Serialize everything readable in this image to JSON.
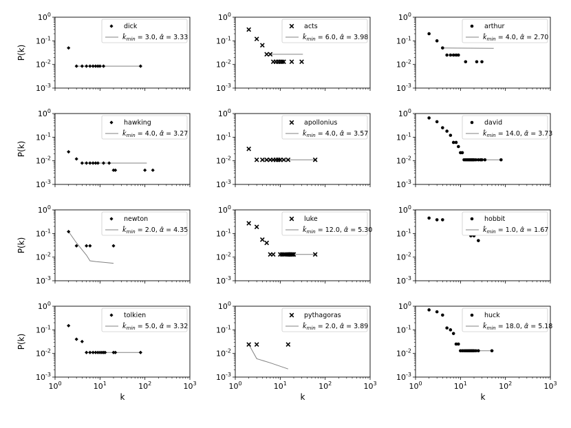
{
  "axis": {
    "xlabel": "k",
    "ylabel": "P(k)",
    "x_ticks": [
      "10^0",
      "10^1",
      "10^2",
      "10^3"
    ],
    "y_ticks": [
      "10^0",
      "10^-1",
      "10^-2",
      "10^-3"
    ],
    "xlim": [
      1,
      1000
    ],
    "ylim": [
      0.001,
      1
    ],
    "scale": "log-log"
  },
  "chart_data": [
    {
      "type": "scatter",
      "name": "dick",
      "marker": "plus",
      "kmin": "3.0",
      "alpha": "3.33",
      "x": [
        2,
        3,
        4,
        5,
        6,
        7,
        8,
        9,
        10,
        12,
        80
      ],
      "y": [
        0.05,
        0.0085,
        0.0085,
        0.0085,
        0.0085,
        0.0085,
        0.0085,
        0.0085,
        0.0085,
        0.0085,
        0.0085
      ],
      "fit": [
        [
          3,
          0.0085
        ],
        [
          85,
          0.0085
        ]
      ]
    },
    {
      "type": "scatter",
      "name": "acts",
      "marker": "x",
      "kmin": "6.0",
      "alpha": "3.98",
      "x": [
        2,
        3,
        4,
        5,
        6,
        7,
        8,
        9,
        10,
        11,
        12,
        18,
        30
      ],
      "y": [
        0.3,
        0.12,
        0.065,
        0.027,
        0.027,
        0.013,
        0.013,
        0.013,
        0.013,
        0.013,
        0.013,
        0.013,
        0.013
      ],
      "fit": [
        [
          6,
          0.027
        ],
        [
          32,
          0.027
        ]
      ]
    },
    {
      "type": "scatter",
      "name": "arthur",
      "marker": "dot",
      "kmin": "4.0",
      "alpha": "2.70",
      "x": [
        2,
        3,
        4,
        5,
        6,
        7,
        8,
        9,
        13,
        23,
        30
      ],
      "y": [
        0.2,
        0.1,
        0.05,
        0.025,
        0.025,
        0.025,
        0.025,
        0.025,
        0.013,
        0.013,
        0.013
      ],
      "fit": [
        [
          4,
          0.05
        ],
        [
          55,
          0.048
        ]
      ]
    },
    {
      "type": "scatter",
      "name": "hawking",
      "marker": "plus",
      "kmin": "4.0",
      "alpha": "3.27",
      "x": [
        2,
        3,
        4,
        5,
        6,
        7,
        8,
        9,
        12,
        16,
        20,
        22,
        100,
        150
      ],
      "y": [
        0.024,
        0.012,
        0.008,
        0.008,
        0.008,
        0.008,
        0.008,
        0.008,
        0.008,
        0.008,
        0.004,
        0.004,
        0.004,
        0.004
      ],
      "fit": [
        [
          4,
          0.008
        ],
        [
          110,
          0.008
        ]
      ]
    },
    {
      "type": "scatter",
      "name": "apollonius",
      "marker": "x",
      "kmin": "4.0",
      "alpha": "3.57",
      "x": [
        2,
        3,
        4,
        5,
        6,
        7,
        8,
        9,
        10,
        12,
        15,
        60
      ],
      "y": [
        0.032,
        0.011,
        0.011,
        0.011,
        0.011,
        0.011,
        0.011,
        0.011,
        0.011,
        0.011,
        0.011,
        0.011
      ],
      "fit": [
        [
          4,
          0.011
        ],
        [
          65,
          0.011
        ]
      ]
    },
    {
      "type": "scatter",
      "name": "david",
      "marker": "dot",
      "kmin": "14.0",
      "alpha": "3.73",
      "x": [
        2,
        3,
        4,
        5,
        6,
        7,
        8,
        9,
        10,
        11,
        12,
        13,
        14,
        15,
        16,
        17,
        18,
        19,
        20,
        22,
        25,
        28,
        30,
        35,
        80
      ],
      "y": [
        0.65,
        0.45,
        0.25,
        0.18,
        0.12,
        0.06,
        0.06,
        0.04,
        0.022,
        0.022,
        0.011,
        0.011,
        0.011,
        0.011,
        0.011,
        0.011,
        0.011,
        0.011,
        0.011,
        0.011,
        0.011,
        0.011,
        0.011,
        0.011,
        0.011
      ],
      "fit": [
        [
          14,
          0.011
        ],
        [
          85,
          0.011
        ]
      ]
    },
    {
      "type": "scatter",
      "name": "newton",
      "marker": "plus",
      "kmin": "2.0",
      "alpha": "4.35",
      "x": [
        2,
        3,
        5,
        6,
        20
      ],
      "y": [
        0.12,
        0.03,
        0.03,
        0.03,
        0.03
      ],
      "fit": [
        [
          2,
          0.12
        ],
        [
          3,
          0.04
        ],
        [
          5,
          0.012
        ],
        [
          6,
          0.007
        ],
        [
          8,
          0.0065
        ],
        [
          20,
          0.0055
        ]
      ]
    },
    {
      "type": "scatter",
      "name": "luke",
      "marker": "x",
      "kmin": "12.0",
      "alpha": "5.30",
      "x": [
        2,
        3,
        4,
        5,
        6,
        7,
        10,
        11,
        12,
        13,
        14,
        15,
        16,
        17,
        18,
        19,
        20,
        60
      ],
      "y": [
        0.27,
        0.19,
        0.055,
        0.04,
        0.013,
        0.013,
        0.013,
        0.013,
        0.013,
        0.013,
        0.013,
        0.013,
        0.013,
        0.013,
        0.013,
        0.013,
        0.013,
        0.013
      ],
      "fit": [
        [
          12,
          0.013
        ],
        [
          65,
          0.013
        ]
      ]
    },
    {
      "type": "scatter",
      "name": "hobbit",
      "marker": "dot",
      "kmin": "1.0",
      "alpha": "1.67",
      "x": [
        2,
        3,
        4,
        17,
        20,
        25
      ],
      "y": [
        0.45,
        0.38,
        0.38,
        0.08,
        0.08,
        0.05
      ],
      "fit": []
    },
    {
      "type": "scatter",
      "name": "tolkien",
      "marker": "plus",
      "kmin": "5.0",
      "alpha": "3.32",
      "x": [
        2,
        3,
        4,
        5,
        6,
        7,
        8,
        9,
        10,
        11,
        12,
        13,
        20,
        22,
        80
      ],
      "y": [
        0.15,
        0.04,
        0.032,
        0.011,
        0.011,
        0.011,
        0.011,
        0.011,
        0.011,
        0.011,
        0.011,
        0.011,
        0.011,
        0.011,
        0.011
      ],
      "fit": [
        [
          5,
          0.011
        ],
        [
          85,
          0.011
        ]
      ]
    },
    {
      "type": "scatter",
      "name": "pythagoras",
      "marker": "x",
      "kmin": "2.0",
      "alpha": "3.89",
      "x": [
        2,
        3,
        15
      ],
      "y": [
        0.024,
        0.024,
        0.024
      ],
      "fit": [
        [
          2,
          0.024
        ],
        [
          3,
          0.006
        ],
        [
          6,
          0.004
        ],
        [
          15,
          0.0022
        ]
      ]
    },
    {
      "type": "scatter",
      "name": "huck",
      "marker": "dot",
      "kmin": "18.0",
      "alpha": "5.18",
      "x": [
        2,
        3,
        4,
        5,
        6,
        7,
        8,
        9,
        10,
        11,
        12,
        13,
        14,
        15,
        16,
        17,
        18,
        19,
        20,
        22,
        25,
        50
      ],
      "y": [
        0.7,
        0.58,
        0.42,
        0.12,
        0.1,
        0.07,
        0.025,
        0.025,
        0.013,
        0.013,
        0.013,
        0.013,
        0.013,
        0.013,
        0.013,
        0.013,
        0.013,
        0.013,
        0.013,
        0.013,
        0.013,
        0.013
      ],
      "fit": [
        [
          18,
          0.013
        ],
        [
          55,
          0.013
        ]
      ]
    }
  ]
}
